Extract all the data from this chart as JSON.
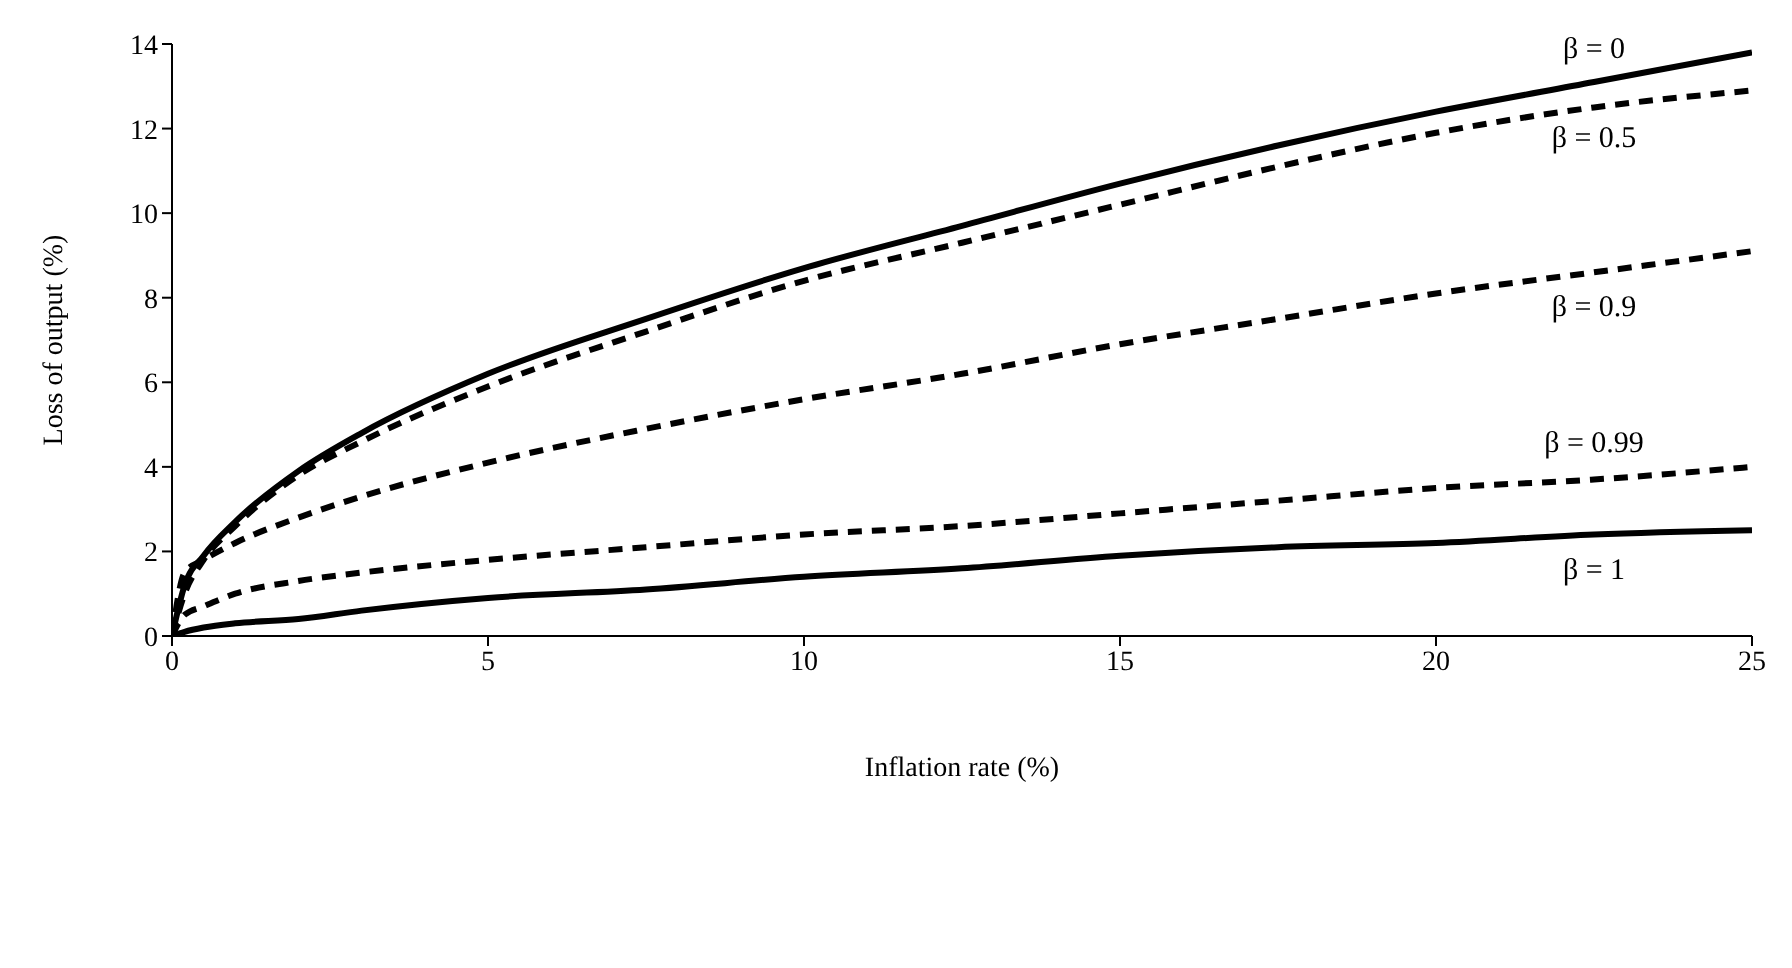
{
  "chart_data": {
    "type": "line",
    "xlabel": "Inflation rate (%)",
    "ylabel": "Loss of output (%)",
    "x": [
      0,
      0.2,
      0.5,
      1,
      2,
      3,
      5,
      7.5,
      10,
      12.5,
      15,
      17.5,
      20,
      22.5,
      25
    ],
    "xlim": [
      0,
      25
    ],
    "xticks": [
      0,
      5,
      10,
      15,
      20,
      25
    ],
    "ylim": [
      0,
      14
    ],
    "yticks": [
      0,
      2,
      4,
      6,
      8,
      10,
      12,
      14
    ],
    "grid": false,
    "legend": false,
    "marker": "none",
    "series": [
      {
        "name": "β = 0",
        "color": "#000000",
        "line_style": "solid",
        "values": [
          0,
          1.2,
          1.9,
          2.7,
          3.9,
          4.8,
          6.2,
          7.5,
          8.7,
          9.7,
          10.7,
          11.6,
          12.4,
          13.1,
          13.8
        ]
      },
      {
        "name": "β = 0.5",
        "color": "#000000",
        "line_style": "dashed",
        "values": [
          0,
          1.0,
          1.8,
          2.6,
          3.8,
          4.6,
          5.9,
          7.2,
          8.4,
          9.3,
          10.2,
          11.1,
          11.9,
          12.5,
          12.9
        ]
      },
      {
        "name": "β = 0.9",
        "color": "#000000",
        "line_style": "dashed",
        "values": [
          0,
          1.5,
          1.8,
          2.2,
          2.8,
          3.3,
          4.1,
          4.9,
          5.6,
          6.2,
          6.9,
          7.5,
          8.1,
          8.6,
          9.1
        ]
      },
      {
        "name": "β = 0.99",
        "color": "#000000",
        "line_style": "dashed",
        "values": [
          0,
          0.5,
          0.7,
          1.0,
          1.3,
          1.5,
          1.8,
          2.1,
          2.4,
          2.6,
          2.9,
          3.2,
          3.5,
          3.7,
          4.0
        ]
      },
      {
        "name": "β = 1",
        "color": "#000000",
        "line_style": "solid",
        "values": [
          0,
          0.1,
          0.2,
          0.3,
          0.4,
          0.6,
          0.9,
          1.1,
          1.4,
          1.6,
          1.9,
          2.1,
          2.2,
          2.4,
          2.5
        ]
      }
    ]
  }
}
